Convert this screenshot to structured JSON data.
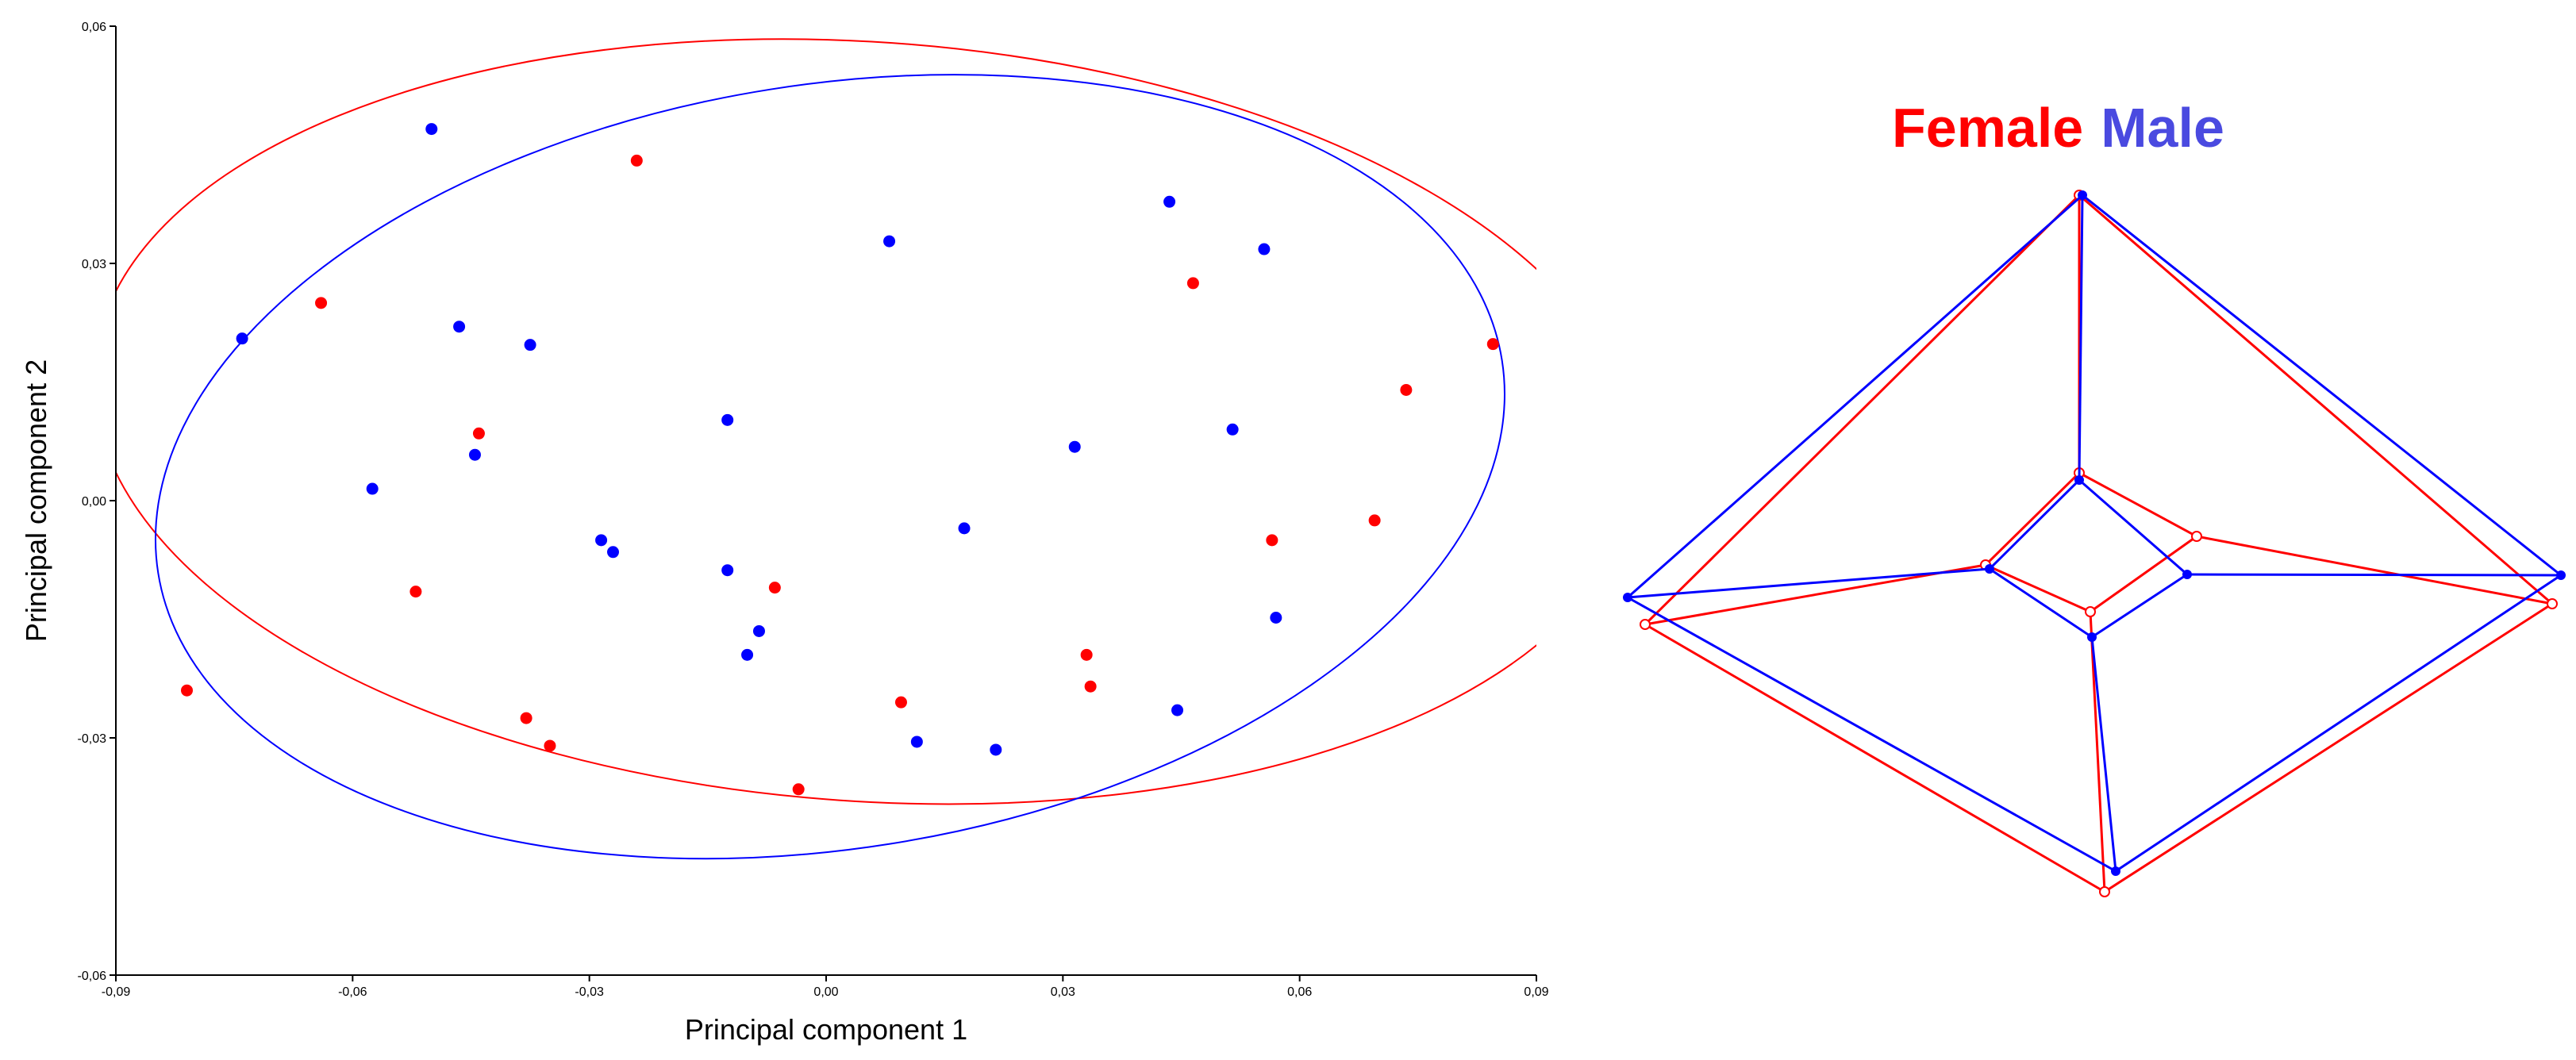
{
  "colors": {
    "female": "#ff0000",
    "male": "#0000ff",
    "axis": "#000000"
  },
  "chart_data": [
    {
      "type": "scatter",
      "title": "",
      "xlabel": "Principal component 1",
      "ylabel": "Principal component 2",
      "xlim": [
        -0.09,
        0.09
      ],
      "ylim": [
        -0.06,
        0.06
      ],
      "xticks": [
        -0.09,
        -0.06,
        -0.03,
        0.0,
        0.03,
        0.06,
        0.09
      ],
      "xtick_labels": [
        "-0,09",
        "-0,06",
        "-0,03",
        "0,00",
        "0,03",
        "0,06",
        "0,09"
      ],
      "yticks": [
        -0.06,
        -0.03,
        0.0,
        0.03,
        0.06
      ],
      "ytick_labels": [
        "-0,06",
        "-0,03",
        "0,00",
        "0,03",
        "0,06"
      ],
      "grid": false,
      "series": [
        {
          "name": "Female",
          "color": "#ff0000",
          "points": [
            [
              -0.081,
              -0.024
            ],
            [
              -0.064,
              0.025
            ],
            [
              -0.052,
              -0.0115
            ],
            [
              -0.044,
              0.0085
            ],
            [
              -0.038,
              -0.0275
            ],
            [
              -0.035,
              -0.031
            ],
            [
              -0.024,
              0.043
            ],
            [
              -0.0065,
              -0.011
            ],
            [
              -0.0035,
              -0.0365
            ],
            [
              0.0095,
              -0.0255
            ],
            [
              0.033,
              -0.0195
            ],
            [
              0.0335,
              -0.0235
            ],
            [
              0.0465,
              0.0275
            ],
            [
              0.0565,
              -0.005
            ],
            [
              0.0695,
              -0.0025
            ],
            [
              0.0735,
              0.014
            ],
            [
              0.0845,
              0.0198
            ]
          ],
          "ellipse": {
            "center": [
              0.005,
              0.01
            ],
            "semi_axes": [
              0.098,
              0.048
            ],
            "rotation_deg": 4
          }
        },
        {
          "name": "Male",
          "color": "#0000ff",
          "points": [
            [
              -0.074,
              0.0205
            ],
            [
              -0.0575,
              0.0015
            ],
            [
              -0.05,
              0.047
            ],
            [
              -0.0465,
              0.022
            ],
            [
              -0.0445,
              0.0058
            ],
            [
              -0.0375,
              0.0197
            ],
            [
              -0.0285,
              -0.005
            ],
            [
              -0.027,
              -0.0065
            ],
            [
              -0.0125,
              0.0102
            ],
            [
              -0.0125,
              -0.0088
            ],
            [
              -0.0085,
              -0.0165
            ],
            [
              -0.01,
              -0.0195
            ],
            [
              0.008,
              0.0328
            ],
            [
              0.0115,
              -0.0305
            ],
            [
              0.0175,
              -0.0035
            ],
            [
              0.0215,
              -0.0315
            ],
            [
              0.0315,
              0.0068
            ],
            [
              0.0435,
              0.0378
            ],
            [
              0.0445,
              -0.0265
            ],
            [
              0.0515,
              0.009
            ],
            [
              0.0555,
              0.0318
            ],
            [
              0.057,
              -0.0148
            ]
          ],
          "ellipse": {
            "center": [
              0.0005,
              0.0043
            ],
            "semi_axes": [
              0.0862,
              0.0483
            ],
            "rotation_deg": -9
          }
        }
      ]
    },
    {
      "type": "diagram",
      "legend": [
        {
          "label": "Female",
          "color": "#ff0000"
        },
        {
          "label": "Male",
          "color": "#0000ff"
        }
      ],
      "note": "wireframe shape comparison (landmark configurations)"
    }
  ]
}
